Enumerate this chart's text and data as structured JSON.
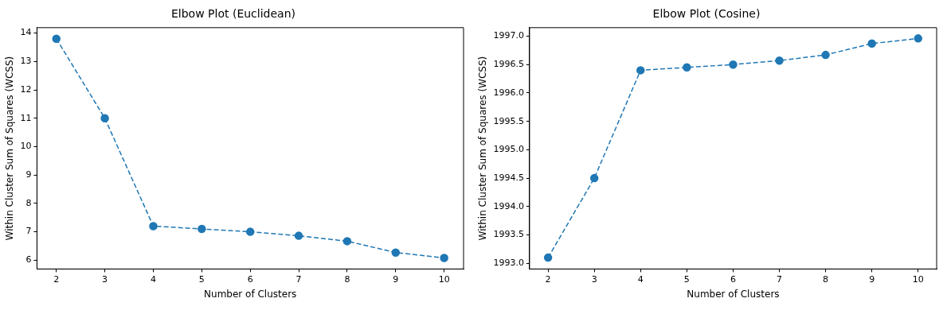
{
  "chart_data": [
    {
      "type": "line",
      "title": "Elbow Plot (Euclidean)",
      "xlabel": "Number of Clusters",
      "ylabel": "Within Cluster Sum of Squares (WCSS)",
      "x": [
        2,
        3,
        4,
        5,
        6,
        7,
        8,
        9,
        10
      ],
      "series": [
        {
          "color": "#1f77b4",
          "values": [
            13.8,
            11.0,
            7.2,
            7.1,
            7.0,
            6.86,
            6.67,
            6.27,
            6.08
          ]
        }
      ],
      "xlim": [
        1.6,
        10.4
      ],
      "xticks": [
        2,
        3,
        4,
        5,
        6,
        7,
        8,
        9,
        10
      ],
      "ylim": [
        5.69,
        14.19
      ],
      "yticks": [
        6,
        7,
        8,
        9,
        10,
        11,
        12,
        13,
        14
      ],
      "grid": false,
      "legend": false,
      "marker": "circle",
      "line_style": "dashed"
    },
    {
      "type": "line",
      "title": "Elbow Plot (Cosine)",
      "xlabel": "Number of Clusters",
      "ylabel": "Within Cluster Sum of Squares (WCSS)",
      "x": [
        2,
        3,
        4,
        5,
        6,
        7,
        8,
        9,
        10
      ],
      "series": [
        {
          "color": "#1f77b4",
          "values": [
            1993.1,
            1994.5,
            1996.4,
            1996.45,
            1996.5,
            1996.57,
            1996.67,
            1996.87,
            1996.96
          ]
        }
      ],
      "xlim": [
        1.6,
        10.4
      ],
      "xticks": [
        2,
        3,
        4,
        5,
        6,
        7,
        8,
        9,
        10
      ],
      "ylim": [
        1992.9,
        1997.15
      ],
      "yticks": [
        {
          "value": 1993,
          "label": "1993.0"
        },
        {
          "value": 1993.5,
          "label": "1993.5"
        },
        {
          "value": 1994,
          "label": "1994.0"
        },
        {
          "value": 1994.5,
          "label": "1994.5"
        },
        {
          "value": 1995,
          "label": "1995.0"
        },
        {
          "value": 1995.5,
          "label": "1995.5"
        },
        {
          "value": 1996,
          "label": "1996.0"
        },
        {
          "value": 1996.5,
          "label": "1996.5"
        },
        {
          "value": 1997,
          "label": "1997.0"
        }
      ],
      "grid": false,
      "legend": false,
      "marker": "circle",
      "line_style": "dashed"
    }
  ]
}
